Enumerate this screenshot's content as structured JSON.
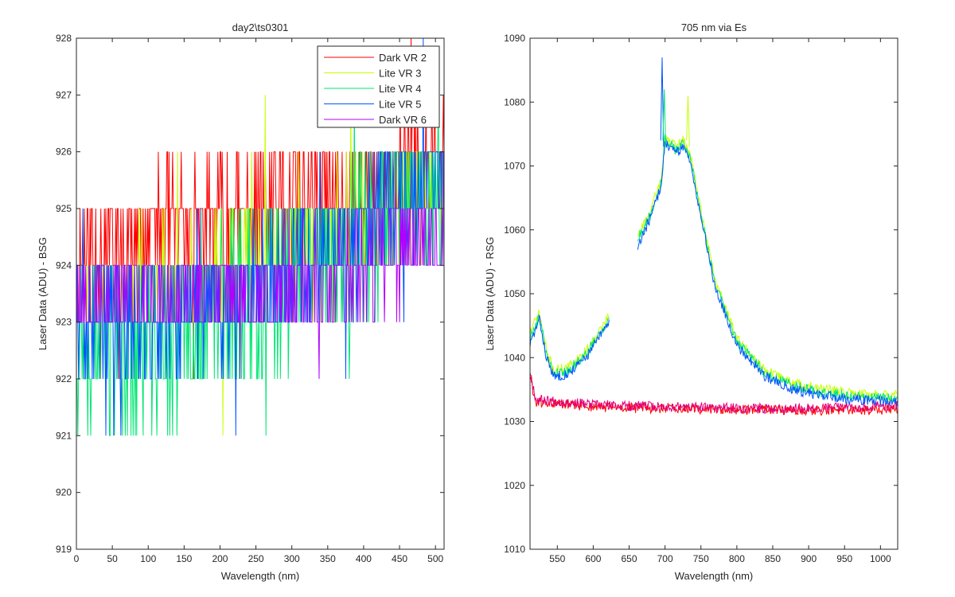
{
  "window": {
    "title": ""
  },
  "chart_data": [
    {
      "type": "line",
      "title": "day2\\ts0301",
      "xlabel": "Wavelength (nm)",
      "ylabel": "Laser Data (ADU) - BSG",
      "xlim": [
        0,
        512
      ],
      "ylim": [
        919,
        928
      ],
      "xticks": [
        0,
        50,
        100,
        150,
        200,
        250,
        300,
        350,
        400,
        450,
        500
      ],
      "yticks": [
        919,
        920,
        921,
        922,
        923,
        924,
        925,
        926,
        927,
        928
      ],
      "grid": false,
      "legend_position": "top-right",
      "series": [
        {
          "name": "Dark VR 2",
          "color": "#ff0000",
          "base": [
            [
              0,
              924.0
            ],
            [
              60,
              924.4
            ],
            [
              120,
              924.6
            ],
            [
              250,
              924.9
            ],
            [
              350,
              925.2
            ],
            [
              450,
              925.6
            ],
            [
              512,
              926.4
            ]
          ],
          "noise": 1.0,
          "seed": 11
        },
        {
          "name": "Lite VR 3",
          "color": "#c8ff00",
          "base": [
            [
              0,
              923.4
            ],
            [
              100,
              923.6
            ],
            [
              250,
              924.0
            ],
            [
              400,
              924.6
            ],
            [
              512,
              925.4
            ]
          ],
          "noise": 1.0,
          "seed": 23
        },
        {
          "name": "Lite VR 4",
          "color": "#00e673",
          "base": [
            [
              0,
              922.8
            ],
            [
              60,
              922.6
            ],
            [
              130,
              922.5
            ],
            [
              200,
              923.2
            ],
            [
              300,
              923.8
            ],
            [
              420,
              924.6
            ],
            [
              512,
              925.4
            ]
          ],
          "noise": 1.5,
          "seed": 37
        },
        {
          "name": "Lite VR 5",
          "color": "#0055ff",
          "base": [
            [
              0,
              923.0
            ],
            [
              100,
              923.0
            ],
            [
              200,
              923.4
            ],
            [
              300,
              923.8
            ],
            [
              400,
              924.8
            ],
            [
              512,
              925.6
            ]
          ],
          "noise": 1.0,
          "seed": 41
        },
        {
          "name": "Dark VR 6",
          "color": "#b000ff",
          "base": [
            [
              0,
              923.5
            ],
            [
              150,
              923.5
            ],
            [
              300,
              923.6
            ],
            [
              400,
              923.9
            ],
            [
              512,
              924.6
            ]
          ],
          "noise": 0.9,
          "seed": 53
        }
      ]
    },
    {
      "type": "line",
      "title": "705 nm via Es",
      "xlabel": "Wavelength (nm)",
      "ylabel": "Laser Data (ADU) - RSG",
      "xlim": [
        512,
        1024
      ],
      "ylim": [
        1010,
        1090
      ],
      "xticks": [
        550,
        600,
        650,
        700,
        750,
        800,
        850,
        900,
        950,
        1000
      ],
      "yticks": [
        1010,
        1020,
        1030,
        1040,
        1050,
        1060,
        1070,
        1080,
        1090
      ],
      "grid": false,
      "series": [
        {
          "name": "",
          "color": "#ff0000",
          "segments": [
            [
              [
                512,
                1037
              ],
              [
                520,
                1033
              ],
              [
                600,
                1032.3
              ],
              [
                700,
                1032.0
              ],
              [
                850,
                1031.8
              ],
              [
                1024,
                1031.8
              ]
            ]
          ],
          "noise": 0.8,
          "seed": 61
        },
        {
          "name": "",
          "color": "#e0007a",
          "segments": [
            [
              [
                512,
                1038
              ],
              [
                520,
                1033.5
              ],
              [
                600,
                1032.6
              ],
              [
                700,
                1032.3
              ],
              [
                850,
                1032.0
              ],
              [
                1024,
                1032.5
              ]
            ]
          ],
          "noise": 0.8,
          "seed": 67
        },
        {
          "name": "",
          "color": "#c8ff00",
          "segments": [
            [
              [
                512,
                1044
              ],
              [
                525,
                1047
              ],
              [
                535,
                1041
              ],
              [
                545,
                1038
              ],
              [
                565,
                1038.5
              ],
              [
                590,
                1041
              ],
              [
                622,
                1046.5
              ]
            ],
            [
              [
                662,
                1059
              ],
              [
                680,
                1063
              ],
              [
                695,
                1068
              ],
              [
                700,
                1075
              ],
              [
                705,
                1074
              ],
              [
                715,
                1073
              ],
              [
                725,
                1074
              ],
              [
                735,
                1072
              ],
              [
                750,
                1063
              ],
              [
                770,
                1052
              ],
              [
                800,
                1043
              ],
              [
                840,
                1038
              ],
              [
                880,
                1036
              ],
              [
                920,
                1035
              ],
              [
                960,
                1034.5
              ],
              [
                1024,
                1034
              ]
            ]
          ],
          "noise": 0.8,
          "seed": 71
        },
        {
          "name": "",
          "color": "#00e673",
          "segments": [
            [
              [
                512,
                1043
              ],
              [
                525,
                1046.5
              ],
              [
                535,
                1040.5
              ],
              [
                545,
                1037.5
              ],
              [
                565,
                1038
              ],
              [
                590,
                1040.5
              ],
              [
                622,
                1046
              ]
            ],
            [
              [
                662,
                1058.5
              ],
              [
                680,
                1062.5
              ],
              [
                695,
                1067.5
              ],
              [
                700,
                1074.5
              ],
              [
                705,
                1073.5
              ],
              [
                715,
                1072.5
              ],
              [
                725,
                1073.5
              ],
              [
                735,
                1071.5
              ],
              [
                750,
                1062.5
              ],
              [
                770,
                1051.5
              ],
              [
                800,
                1042.5
              ],
              [
                840,
                1037.5
              ],
              [
                880,
                1035.5
              ],
              [
                920,
                1034.5
              ],
              [
                960,
                1034
              ],
              [
                1024,
                1033.5
              ]
            ]
          ],
          "noise": 0.8,
          "seed": 79
        },
        {
          "name": "",
          "color": "#0055ff",
          "segments": [
            [
              [
                512,
                1042
              ],
              [
                525,
                1046
              ],
              [
                535,
                1040
              ],
              [
                545,
                1037
              ],
              [
                565,
                1037.5
              ],
              [
                590,
                1040
              ],
              [
                622,
                1045.5
              ]
            ],
            [
              [
                662,
                1057.5
              ],
              [
                680,
                1062
              ],
              [
                695,
                1067
              ],
              [
                700,
                1074
              ],
              [
                705,
                1073
              ],
              [
                715,
                1072
              ],
              [
                725,
                1073
              ],
              [
                735,
                1071
              ],
              [
                750,
                1062
              ],
              [
                770,
                1051
              ],
              [
                800,
                1042
              ],
              [
                840,
                1037
              ],
              [
                880,
                1035
              ],
              [
                920,
                1034
              ],
              [
                960,
                1033.5
              ],
              [
                1024,
                1033
              ]
            ]
          ],
          "noise": 0.8,
          "seed": 83
        }
      ],
      "spikes": [
        {
          "color": "#0055ff",
          "x": 696,
          "top": 1087
        },
        {
          "color": "#00e673",
          "x": 699,
          "top": 1082
        },
        {
          "color": "#c8ff00",
          "x": 732,
          "top": 1081
        }
      ]
    }
  ]
}
